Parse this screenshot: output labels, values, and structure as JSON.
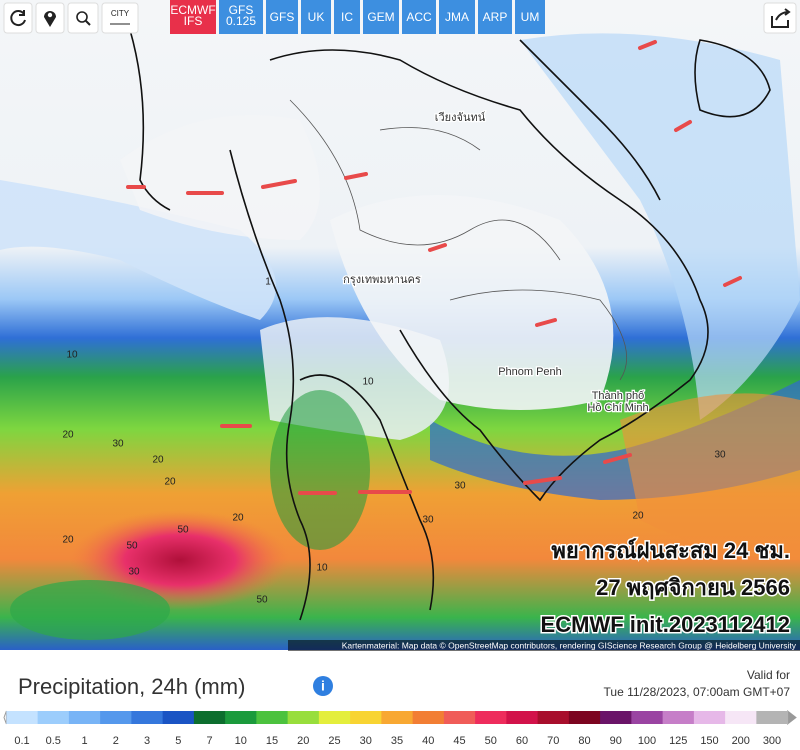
{
  "toolbar": {
    "city_button": "CITY",
    "models": [
      {
        "label": "ECMWF IFS",
        "active": true
      },
      {
        "label": "GFS 0.125",
        "active": false
      },
      {
        "label": "GFS",
        "active": false
      },
      {
        "label": "UK",
        "active": false
      },
      {
        "label": "IC",
        "active": false
      },
      {
        "label": "GEM",
        "active": false
      },
      {
        "label": "ACC",
        "active": false
      },
      {
        "label": "JMA",
        "active": false
      },
      {
        "label": "ARP",
        "active": false
      },
      {
        "label": "UM",
        "active": false
      }
    ]
  },
  "map": {
    "places": [
      "เวียงจันทน์",
      "กรุงเทพมหานคร",
      "Phnom Penh",
      "Thành phố Hồ Chí Minh"
    ],
    "contour_labels": [
      10,
      20,
      30,
      20,
      50,
      50,
      30,
      20,
      50,
      20,
      30,
      10,
      20,
      30,
      1,
      10,
      30,
      20
    ],
    "overlay_lines": [
      "พยากรณ์ฝนสะสม 24 ชม.",
      "27 พฤศจิกายน 2566",
      "ECMWF init.2023112412"
    ],
    "attribution": "Kartenmaterial: Map data © OpenStreetMap contributors, rendering GIScience Research Group @ Heidelberg University"
  },
  "legend": {
    "title": "Precipitation, 24h (mm)",
    "valid_label": "Valid for",
    "valid_time": "Tue 11/28/2023, 07:00am GMT+07",
    "values": [
      0.1,
      0.5,
      1,
      2,
      3,
      5,
      7,
      10,
      15,
      20,
      25,
      30,
      35,
      40,
      45,
      50,
      60,
      70,
      80,
      90,
      100,
      125,
      150,
      200,
      300
    ],
    "colors": [
      "#c4e2ff",
      "#9ccdfc",
      "#78b4f6",
      "#5598ec",
      "#3577dc",
      "#1a54c4",
      "#0d6e2e",
      "#1b9a3c",
      "#4cc23e",
      "#98de3c",
      "#e4ee3c",
      "#f8d432",
      "#f8a832",
      "#f27e34",
      "#f05c58",
      "#ee2c5c",
      "#d2124a",
      "#a80e2c",
      "#7c0420",
      "#6a1468",
      "#9a44a2",
      "#c67ec8",
      "#e6b8e8",
      "#f6e6f6",
      "#b4b4b4"
    ]
  }
}
